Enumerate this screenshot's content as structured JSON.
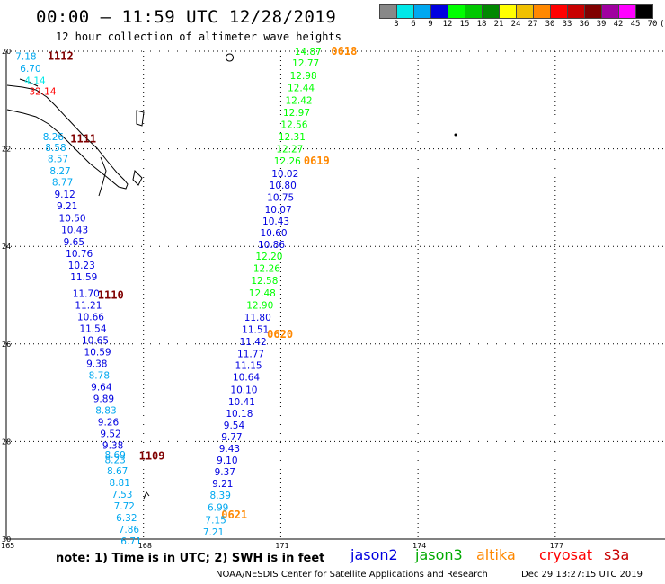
{
  "header": {
    "title": "00:00 – 11:59 UTC 12/28/2019",
    "subtitle": "12 hour collection of altimeter wave heights"
  },
  "color_scale": {
    "labels": [
      "3",
      "6",
      "9",
      "12",
      "15",
      "18",
      "21",
      "24",
      "27",
      "30",
      "33",
      "36",
      "39",
      "42",
      "45",
      "70",
      "(ft)"
    ],
    "colors": [
      "#888888",
      "#00e8e8",
      "#00a8f0",
      "#0000e0",
      "#00ff00",
      "#00c800",
      "#008800",
      "#ffff00",
      "#f0c000",
      "#ff8800",
      "#ff0000",
      "#c80000",
      "#800000",
      "#a000a0",
      "#ff00ff",
      "#000000"
    ]
  },
  "map": {
    "lat_labels": [
      "20",
      "22",
      "24",
      "26",
      "28",
      "30"
    ],
    "lon_labels": [
      "165",
      "168",
      "171",
      "174",
      "177"
    ],
    "grid_lats": [
      -20,
      -22,
      -24,
      -26,
      -28,
      -30
    ],
    "grid_lons": [
      165,
      168,
      171,
      174,
      177
    ],
    "extent": {
      "lon_min": 165,
      "lon_max": 179.4,
      "lat_max": -20,
      "lat_min": -30
    }
  },
  "pass_labels": [
    {
      "text": "1112",
      "color": "#800000",
      "lon": 165.9,
      "lat": -20.1
    },
    {
      "text": "1111",
      "color": "#800000",
      "lon": 166.4,
      "lat": -21.8
    },
    {
      "text": "1110",
      "color": "#800000",
      "lon": 167.0,
      "lat": -25.0
    },
    {
      "text": "1109",
      "color": "#800000",
      "lon": 167.9,
      "lat": -28.3
    },
    {
      "text": "0618",
      "color": "#ff8800",
      "lon": 172.1,
      "lat": -20.0
    },
    {
      "text": "0619",
      "color": "#ff8800",
      "lon": 171.5,
      "lat": -22.25
    },
    {
      "text": "0620",
      "color": "#ff8800",
      "lon": 170.7,
      "lat": -25.8
    },
    {
      "text": "0621",
      "color": "#ff8800",
      "lon": 169.7,
      "lat": -29.5
    }
  ],
  "tracks": [
    {
      "satellite": "cryosat",
      "points": [
        {
          "v": "7.18",
          "lon": 165.2,
          "lat": -20.1,
          "c": "#00a8f0"
        },
        {
          "v": "6.70",
          "lon": 165.3,
          "lat": -20.35,
          "c": "#00a8f0"
        },
        {
          "v": "4.14",
          "lon": 165.4,
          "lat": -20.6,
          "c": "#00e8e8"
        },
        {
          "v": "32.14",
          "lon": 165.5,
          "lat": -20.82,
          "c": "#ff0000"
        },
        {
          "v": "8.26",
          "lon": 165.8,
          "lat": -21.75,
          "c": "#00a8f0"
        },
        {
          "v": "8.58",
          "lon": 165.85,
          "lat": -21.97,
          "c": "#00a8f0"
        },
        {
          "v": "8.57",
          "lon": 165.9,
          "lat": -22.2,
          "c": "#00a8f0"
        },
        {
          "v": "8.27",
          "lon": 165.95,
          "lat": -22.45,
          "c": "#00a8f0"
        },
        {
          "v": "8.77",
          "lon": 166.0,
          "lat": -22.68,
          "c": "#00a8f0"
        },
        {
          "v": "9.12",
          "lon": 166.05,
          "lat": -22.93,
          "c": "#0000e0"
        },
        {
          "v": "9.21",
          "lon": 166.1,
          "lat": -23.17,
          "c": "#0000e0"
        },
        {
          "v": "10.50",
          "lon": 166.15,
          "lat": -23.42,
          "c": "#0000e0"
        },
        {
          "v": "10.43",
          "lon": 166.2,
          "lat": -23.66,
          "c": "#0000e0"
        },
        {
          "v": "9.65",
          "lon": 166.25,
          "lat": -23.9,
          "c": "#0000e0"
        },
        {
          "v": "10.76",
          "lon": 166.3,
          "lat": -24.14,
          "c": "#0000e0"
        },
        {
          "v": "10.23",
          "lon": 166.35,
          "lat": -24.38,
          "c": "#0000e0"
        },
        {
          "v": "11.59",
          "lon": 166.4,
          "lat": -24.62,
          "c": "#0000e0"
        },
        {
          "v": "11.70",
          "lon": 166.45,
          "lat": -24.96,
          "c": "#0000e0"
        },
        {
          "v": "11.21",
          "lon": 166.5,
          "lat": -25.2,
          "c": "#0000e0"
        },
        {
          "v": "10.66",
          "lon": 166.55,
          "lat": -25.44,
          "c": "#0000e0"
        },
        {
          "v": "11.54",
          "lon": 166.6,
          "lat": -25.68,
          "c": "#0000e0"
        },
        {
          "v": "10.65",
          "lon": 166.65,
          "lat": -25.92,
          "c": "#0000e0"
        },
        {
          "v": "10.59",
          "lon": 166.7,
          "lat": -26.16,
          "c": "#0000e0"
        },
        {
          "v": "9.38",
          "lon": 166.75,
          "lat": -26.4,
          "c": "#0000e0"
        },
        {
          "v": "8.78",
          "lon": 166.8,
          "lat": -26.64,
          "c": "#00a8f0"
        },
        {
          "v": "9.64",
          "lon": 166.85,
          "lat": -26.88,
          "c": "#0000e0"
        },
        {
          "v": "9.89",
          "lon": 166.9,
          "lat": -27.12,
          "c": "#0000e0"
        },
        {
          "v": "8.83",
          "lon": 166.95,
          "lat": -27.36,
          "c": "#00a8f0"
        },
        {
          "v": "9.26",
          "lon": 167.0,
          "lat": -27.6,
          "c": "#0000e0"
        },
        {
          "v": "9.52",
          "lon": 167.05,
          "lat": -27.84,
          "c": "#0000e0"
        },
        {
          "v": "9.38",
          "lon": 167.1,
          "lat": -28.08,
          "c": "#0000e0"
        },
        {
          "v": "8.69",
          "lon": 167.15,
          "lat": -28.27,
          "c": "#00a8f0"
        },
        {
          "v": "8.23",
          "lon": 167.15,
          "lat": -28.37,
          "c": "#00a8f0"
        },
        {
          "v": "8.67",
          "lon": 167.2,
          "lat": -28.6,
          "c": "#00a8f0"
        },
        {
          "v": "8.81",
          "lon": 167.25,
          "lat": -28.84,
          "c": "#00a8f0"
        },
        {
          "v": "7.53",
          "lon": 167.3,
          "lat": -29.08,
          "c": "#00a8f0"
        },
        {
          "v": "7.72",
          "lon": 167.35,
          "lat": -29.32,
          "c": "#00a8f0"
        },
        {
          "v": "6.32",
          "lon": 167.4,
          "lat": -29.56,
          "c": "#00a8f0"
        },
        {
          "v": "7.86",
          "lon": 167.45,
          "lat": -29.8,
          "c": "#00a8f0"
        },
        {
          "v": "6.71",
          "lon": 167.5,
          "lat": -30.04,
          "c": "#00a8f0"
        }
      ]
    },
    {
      "satellite": "jason3",
      "points": [
        {
          "v": "14.87",
          "lon": 171.3,
          "lat": -20.0,
          "c": "#00ff00"
        },
        {
          "v": "12.77",
          "lon": 171.25,
          "lat": -20.24,
          "c": "#00ff00"
        },
        {
          "v": "12.98",
          "lon": 171.2,
          "lat": -20.5,
          "c": "#00ff00"
        },
        {
          "v": "12.44",
          "lon": 171.15,
          "lat": -20.75,
          "c": "#00ff00"
        },
        {
          "v": "12.42",
          "lon": 171.1,
          "lat": -21.0,
          "c": "#00ff00"
        },
        {
          "v": "12.97",
          "lon": 171.05,
          "lat": -21.25,
          "c": "#00ff00"
        },
        {
          "v": "12.56",
          "lon": 171.0,
          "lat": -21.5,
          "c": "#00ff00"
        },
        {
          "v": "12.31",
          "lon": 170.95,
          "lat": -21.75,
          "c": "#00ff00"
        },
        {
          "v": "12.27",
          "lon": 170.9,
          "lat": -22.0,
          "c": "#00ff00"
        },
        {
          "v": "12.26",
          "lon": 170.85,
          "lat": -22.25,
          "c": "#00ff00"
        },
        {
          "v": "10.02",
          "lon": 170.8,
          "lat": -22.5,
          "c": "#0000e0"
        },
        {
          "v": "10.80",
          "lon": 170.75,
          "lat": -22.74,
          "c": "#0000e0"
        },
        {
          "v": "10.75",
          "lon": 170.7,
          "lat": -22.99,
          "c": "#0000e0"
        },
        {
          "v": "10.07",
          "lon": 170.65,
          "lat": -23.24,
          "c": "#0000e0"
        },
        {
          "v": "10.43",
          "lon": 170.6,
          "lat": -23.48,
          "c": "#0000e0"
        },
        {
          "v": "10.60",
          "lon": 170.55,
          "lat": -23.72,
          "c": "#0000e0"
        },
        {
          "v": "10.86",
          "lon": 170.5,
          "lat": -23.96,
          "c": "#0000e0"
        },
        {
          "v": "12.20",
          "lon": 170.45,
          "lat": -24.2,
          "c": "#00ff00"
        },
        {
          "v": "12.26",
          "lon": 170.4,
          "lat": -24.45,
          "c": "#00ff00"
        },
        {
          "v": "12.58",
          "lon": 170.35,
          "lat": -24.7,
          "c": "#00ff00"
        },
        {
          "v": "12.48",
          "lon": 170.3,
          "lat": -24.95,
          "c": "#00ff00"
        },
        {
          "v": "12.90",
          "lon": 170.25,
          "lat": -25.2,
          "c": "#00ff00"
        },
        {
          "v": "11.80",
          "lon": 170.2,
          "lat": -25.45,
          "c": "#0000e0"
        },
        {
          "v": "11.51",
          "lon": 170.15,
          "lat": -25.7,
          "c": "#0000e0"
        },
        {
          "v": "11.42",
          "lon": 170.1,
          "lat": -25.95,
          "c": "#0000e0"
        },
        {
          "v": "11.77",
          "lon": 170.05,
          "lat": -26.2,
          "c": "#0000e0"
        },
        {
          "v": "11.15",
          "lon": 170.0,
          "lat": -26.44,
          "c": "#0000e0"
        },
        {
          "v": "10.64",
          "lon": 169.95,
          "lat": -26.68,
          "c": "#0000e0"
        },
        {
          "v": "10.10",
          "lon": 169.9,
          "lat": -26.93,
          "c": "#0000e0"
        },
        {
          "v": "10.41",
          "lon": 169.85,
          "lat": -27.18,
          "c": "#0000e0"
        },
        {
          "v": "10.18",
          "lon": 169.8,
          "lat": -27.42,
          "c": "#0000e0"
        },
        {
          "v": "9.54",
          "lon": 169.75,
          "lat": -27.66,
          "c": "#0000e0"
        },
        {
          "v": "9.77",
          "lon": 169.7,
          "lat": -27.9,
          "c": "#0000e0"
        },
        {
          "v": "9.43",
          "lon": 169.65,
          "lat": -28.14,
          "c": "#0000e0"
        },
        {
          "v": "9.10",
          "lon": 169.6,
          "lat": -28.38,
          "c": "#0000e0"
        },
        {
          "v": "9.37",
          "lon": 169.55,
          "lat": -28.62,
          "c": "#0000e0"
        },
        {
          "v": "9.21",
          "lon": 169.5,
          "lat": -28.86,
          "c": "#0000e0"
        },
        {
          "v": "8.39",
          "lon": 169.45,
          "lat": -29.1,
          "c": "#00a8f0"
        },
        {
          "v": "6.99",
          "lon": 169.4,
          "lat": -29.35,
          "c": "#00a8f0"
        },
        {
          "v": "7.15",
          "lon": 169.35,
          "lat": -29.6,
          "c": "#00a8f0"
        },
        {
          "v": "7.21",
          "lon": 169.3,
          "lat": -29.85,
          "c": "#00a8f0"
        }
      ]
    }
  ],
  "legend": {
    "note": "note: 1) Time is in UTC; 2) SWH is in feet",
    "satellites": [
      {
        "name": "jason2",
        "color": "#0000e0"
      },
      {
        "name": "jason3",
        "color": "#00aa00"
      },
      {
        "name": "altika",
        "color": "#ff8800"
      },
      {
        "name": "cryosat",
        "color": "#ff0000"
      },
      {
        "name": "s3a",
        "color": "#c80000"
      }
    ]
  },
  "footer": {
    "credit": "NOAA/NESDIS Center for Satellite Applications and Research",
    "timestamp": "Dec 29 13:27:15 UTC 2019"
  }
}
